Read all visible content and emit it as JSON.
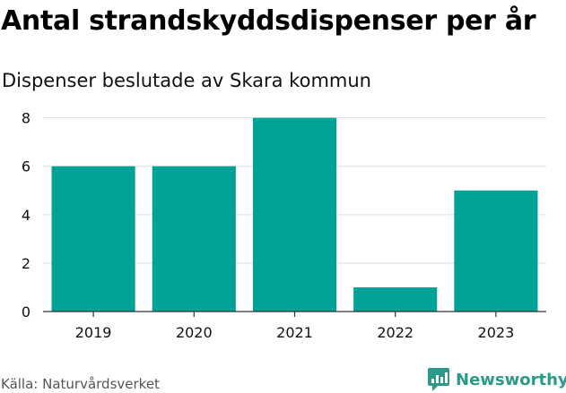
{
  "header": {
    "title": "Antal strandskyddsdispenser per år",
    "subtitle": "Dispenser beslutade av Skara kommun"
  },
  "chart_data": {
    "type": "bar",
    "title": "Antal strandskyddsdispenser per år",
    "subtitle": "Dispenser beslutade av Skara kommun",
    "categories": [
      "2019",
      "2020",
      "2021",
      "2022",
      "2023"
    ],
    "values": [
      6,
      6,
      8,
      1,
      5
    ],
    "yticks": [
      0,
      2,
      4,
      6,
      8
    ],
    "ylim": [
      0,
      8.8
    ],
    "xlabel": "",
    "ylabel": "",
    "grid": true,
    "bar_color": "#00a297"
  },
  "footer": {
    "source": "Källa: Naturvårdsverket",
    "brand": "Newsworthy",
    "brand_color": "#2b9a8a"
  }
}
